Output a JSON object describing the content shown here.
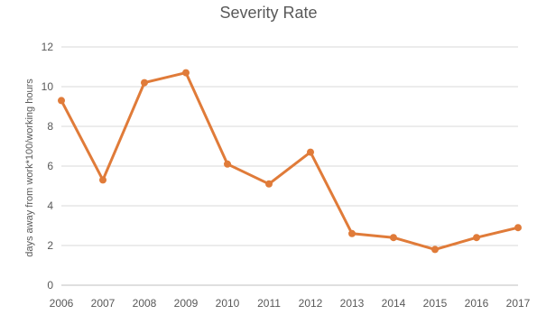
{
  "chart_data": {
    "type": "line",
    "title": "Severity Rate",
    "xlabel": "",
    "ylabel": "days away from work*100/working hours",
    "categories": [
      "2006",
      "2007",
      "2008",
      "2009",
      "2010",
      "2011",
      "2012",
      "2013",
      "2014",
      "2015",
      "2016",
      "2017"
    ],
    "series": [
      {
        "values": [
          9.3,
          5.3,
          10.2,
          10.7,
          6.1,
          5.1,
          6.7,
          2.6,
          2.4,
          1.8,
          2.4,
          2.9
        ]
      }
    ],
    "ylim": [
      0,
      12
    ],
    "yticks": [
      0,
      2,
      4,
      6,
      8,
      10,
      12
    ],
    "grid": true,
    "legend": "none",
    "colors": {
      "line": "#E07B39",
      "grid": "#D9D9D9",
      "axis": "#BFBFBF",
      "text": "#595959"
    }
  }
}
